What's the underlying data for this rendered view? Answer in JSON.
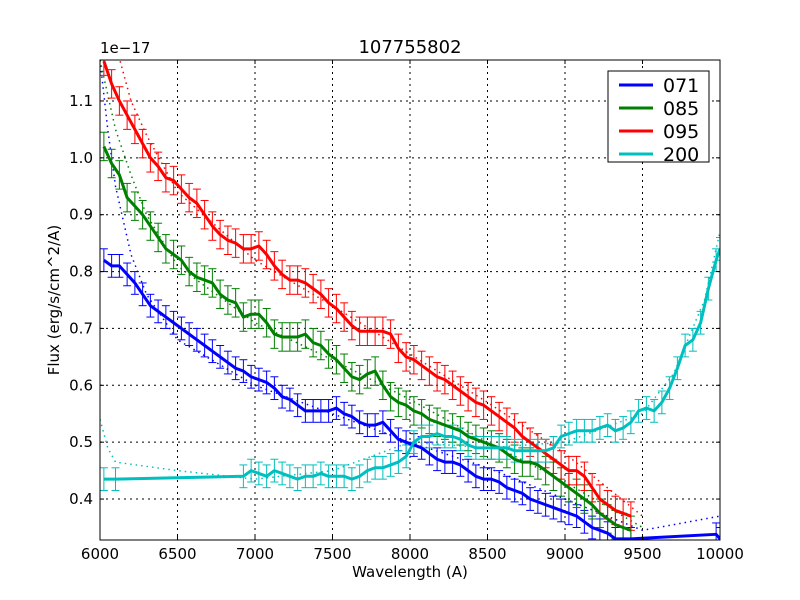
{
  "chart_data": {
    "type": "line",
    "title": "107755802",
    "xlabel": "Wavelength (A)",
    "ylabel": "Flux (erg/s/cm^2/A)",
    "y_offset_label": "1e−17",
    "xlim": [
      6000,
      10000
    ],
    "ylim": [
      0.328,
      1.172
    ],
    "xticks": [
      6000,
      6500,
      7000,
      7500,
      8000,
      8500,
      9000,
      9500,
      10000
    ],
    "xtick_labels": [
      "6000",
      "6500",
      "7000",
      "7500",
      "8000",
      "8500",
      "9000",
      "9500",
      "10000"
    ],
    "yticks": [
      0.4,
      0.5,
      0.6,
      0.7,
      0.8,
      0.9,
      1.0,
      1.1
    ],
    "ytick_labels": [
      "0.4",
      "0.5",
      "0.6",
      "0.7",
      "0.8",
      "0.9",
      "1.0",
      "1.1"
    ],
    "grid": true,
    "legend_position": "upper right",
    "series": [
      {
        "name": "071",
        "color": "#0000ff",
        "x": [
          6025,
          6075,
          6125,
          6175,
          6225,
          6275,
          6325,
          6375,
          6425,
          6475,
          6525,
          6575,
          6625,
          6675,
          6725,
          6775,
          6825,
          6875,
          6925,
          6975,
          7025,
          7075,
          7125,
          7175,
          7225,
          7275,
          7325,
          7375,
          7425,
          7475,
          7525,
          7575,
          7625,
          7675,
          7725,
          7775,
          7825,
          7875,
          7925,
          7975,
          8025,
          8075,
          8125,
          8175,
          8225,
          8275,
          8325,
          8375,
          8425,
          8475,
          8525,
          8575,
          8625,
          8675,
          8725,
          8775,
          8825,
          8875,
          8925,
          8975,
          9025,
          9075,
          9125,
          9175,
          9225,
          9275,
          9325,
          9375,
          9425,
          9975,
          10000
        ],
        "y": [
          0.82,
          0.81,
          0.81,
          0.795,
          0.78,
          0.76,
          0.74,
          0.73,
          0.72,
          0.71,
          0.7,
          0.69,
          0.68,
          0.67,
          0.66,
          0.65,
          0.64,
          0.63,
          0.625,
          0.615,
          0.61,
          0.605,
          0.595,
          0.58,
          0.575,
          0.565,
          0.555,
          0.555,
          0.555,
          0.555,
          0.56,
          0.55,
          0.545,
          0.535,
          0.53,
          0.53,
          0.535,
          0.52,
          0.505,
          0.5,
          0.495,
          0.49,
          0.48,
          0.47,
          0.465,
          0.465,
          0.46,
          0.45,
          0.44,
          0.435,
          0.435,
          0.43,
          0.42,
          0.415,
          0.41,
          0.4,
          0.395,
          0.39,
          0.385,
          0.38,
          0.375,
          0.37,
          0.36,
          0.35,
          0.345,
          0.34,
          0.33,
          0.33,
          0.33,
          0.338,
          0.33
        ],
        "err": 0.02,
        "model_x": [
          6000,
          6050,
          6100,
          6200,
          6300,
          6500,
          7000,
          7500,
          8000,
          8500,
          9000,
          9500,
          10000
        ],
        "model_y": [
          1.172,
          1.05,
          0.95,
          0.83,
          0.76,
          0.68,
          0.6,
          0.55,
          0.5,
          0.455,
          0.4,
          0.345,
          0.37
        ]
      },
      {
        "name": "085",
        "color": "#008000",
        "x": [
          6025,
          6075,
          6125,
          6175,
          6225,
          6275,
          6325,
          6375,
          6425,
          6475,
          6525,
          6575,
          6625,
          6675,
          6725,
          6775,
          6825,
          6875,
          6925,
          6975,
          7025,
          7075,
          7125,
          7175,
          7225,
          7275,
          7325,
          7375,
          7425,
          7475,
          7525,
          7575,
          7625,
          7675,
          7725,
          7775,
          7825,
          7875,
          7925,
          7975,
          8025,
          8075,
          8125,
          8175,
          8225,
          8275,
          8325,
          8375,
          8425,
          8475,
          8525,
          8575,
          8625,
          8675,
          8725,
          8775,
          8825,
          8875,
          8925,
          8975,
          9025,
          9075,
          9125,
          9175,
          9225,
          9275,
          9325,
          9375,
          9425
        ],
        "y": [
          1.02,
          0.99,
          0.97,
          0.93,
          0.915,
          0.9,
          0.88,
          0.86,
          0.84,
          0.83,
          0.82,
          0.8,
          0.79,
          0.785,
          0.78,
          0.76,
          0.75,
          0.745,
          0.72,
          0.725,
          0.725,
          0.71,
          0.69,
          0.685,
          0.685,
          0.685,
          0.69,
          0.675,
          0.67,
          0.655,
          0.645,
          0.63,
          0.615,
          0.61,
          0.62,
          0.625,
          0.6,
          0.58,
          0.57,
          0.565,
          0.555,
          0.55,
          0.54,
          0.535,
          0.53,
          0.525,
          0.52,
          0.51,
          0.505,
          0.5,
          0.495,
          0.49,
          0.48,
          0.47,
          0.465,
          0.465,
          0.46,
          0.45,
          0.44,
          0.43,
          0.42,
          0.41,
          0.4,
          0.39,
          0.375,
          0.365,
          0.355,
          0.35,
          0.345
        ],
        "err": 0.025,
        "model_x": [
          6000,
          6100,
          6200,
          6300,
          6500,
          7000,
          7500,
          8000,
          8500,
          9000,
          9500
        ],
        "model_y": [
          1.172,
          1.05,
          0.97,
          0.9,
          0.81,
          0.71,
          0.645,
          0.575,
          0.5,
          0.43,
          0.35
        ]
      },
      {
        "name": "095",
        "color": "#ff0000",
        "x": [
          6025,
          6075,
          6125,
          6175,
          6225,
          6275,
          6325,
          6375,
          6425,
          6475,
          6525,
          6575,
          6625,
          6675,
          6725,
          6775,
          6825,
          6875,
          6925,
          6975,
          7025,
          7075,
          7125,
          7175,
          7225,
          7275,
          7325,
          7375,
          7425,
          7475,
          7525,
          7575,
          7625,
          7675,
          7725,
          7775,
          7825,
          7875,
          7925,
          7975,
          8025,
          8075,
          8125,
          8175,
          8225,
          8275,
          8325,
          8375,
          8425,
          8475,
          8525,
          8575,
          8625,
          8675,
          8725,
          8775,
          8825,
          8875,
          8925,
          8975,
          9025,
          9075,
          9125,
          9175,
          9225,
          9275,
          9325,
          9375,
          9425
        ],
        "y": [
          1.17,
          1.13,
          1.1,
          1.075,
          1.05,
          1.025,
          1.0,
          0.985,
          0.965,
          0.96,
          0.945,
          0.93,
          0.92,
          0.9,
          0.88,
          0.865,
          0.855,
          0.85,
          0.84,
          0.84,
          0.845,
          0.83,
          0.81,
          0.795,
          0.785,
          0.785,
          0.78,
          0.77,
          0.76,
          0.745,
          0.735,
          0.72,
          0.705,
          0.695,
          0.695,
          0.695,
          0.695,
          0.69,
          0.665,
          0.65,
          0.645,
          0.635,
          0.625,
          0.615,
          0.61,
          0.6,
          0.59,
          0.58,
          0.57,
          0.565,
          0.555,
          0.545,
          0.535,
          0.525,
          0.51,
          0.5,
          0.49,
          0.48,
          0.47,
          0.46,
          0.45,
          0.45,
          0.44,
          0.42,
          0.4,
          0.39,
          0.38,
          0.375,
          0.37
        ],
        "err": 0.025,
        "model_x": [
          6000,
          6100,
          6200,
          6300,
          6500,
          7000,
          7500,
          8000,
          8500,
          9000,
          9500
        ],
        "model_y": [
          1.35,
          1.2,
          1.1,
          1.04,
          0.94,
          0.82,
          0.74,
          0.655,
          0.57,
          0.48,
          0.37
        ]
      },
      {
        "name": "200",
        "color": "#00bfbf",
        "x": [
          6025,
          6100,
          6925,
          6975,
          7025,
          7075,
          7125,
          7175,
          7225,
          7275,
          7325,
          7375,
          7425,
          7475,
          7525,
          7575,
          7625,
          7675,
          7725,
          7775,
          7825,
          7875,
          7925,
          7975,
          8025,
          8075,
          8125,
          8175,
          8225,
          8275,
          8325,
          8375,
          8425,
          8475,
          8525,
          8575,
          8625,
          8675,
          8725,
          8775,
          8825,
          8875,
          8925,
          8975,
          9025,
          9075,
          9125,
          9175,
          9225,
          9275,
          9325,
          9375,
          9425,
          9475,
          9525,
          9575,
          9625,
          9675,
          9725,
          9775,
          9825,
          9875,
          9925,
          9975,
          10000
        ],
        "y": [
          0.435,
          0.435,
          0.44,
          0.45,
          0.445,
          0.44,
          0.45,
          0.445,
          0.44,
          0.435,
          0.44,
          0.44,
          0.445,
          0.44,
          0.44,
          0.44,
          0.435,
          0.44,
          0.45,
          0.455,
          0.455,
          0.46,
          0.465,
          0.475,
          0.5,
          0.51,
          0.51,
          0.515,
          0.51,
          0.51,
          0.505,
          0.495,
          0.49,
          0.49,
          0.49,
          0.49,
          0.49,
          0.485,
          0.485,
          0.485,
          0.485,
          0.485,
          0.49,
          0.51,
          0.515,
          0.52,
          0.52,
          0.52,
          0.525,
          0.53,
          0.52,
          0.525,
          0.535,
          0.555,
          0.56,
          0.555,
          0.57,
          0.595,
          0.63,
          0.67,
          0.68,
          0.71,
          0.77,
          0.82,
          0.84
        ],
        "err": 0.02,
        "model_x": [
          6000,
          6050,
          6100,
          6500,
          7000,
          7500,
          8000,
          8500,
          9000,
          9500,
          9700,
          9900,
          10000
        ],
        "model_y": [
          0.54,
          0.49,
          0.465,
          0.45,
          0.435,
          0.45,
          0.5,
          0.49,
          0.5,
          0.55,
          0.62,
          0.75,
          0.87
        ]
      }
    ]
  },
  "figure": {
    "title": "107755802",
    "xlabel": "Wavelength (A)",
    "ylabel": "Flux (erg/s/cm^2/A)",
    "offset": "1e−17",
    "legend": [
      "071",
      "085",
      "095",
      "200"
    ]
  }
}
